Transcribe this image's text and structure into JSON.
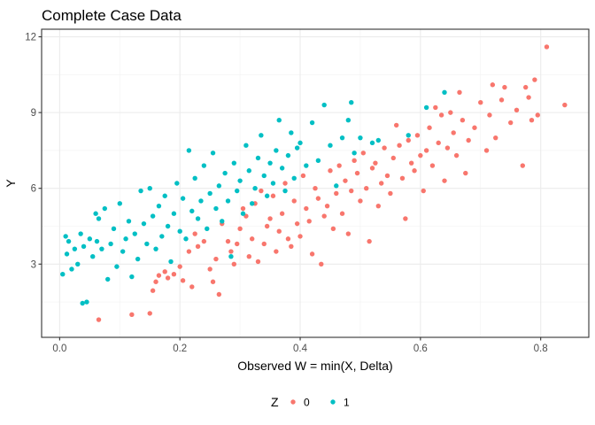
{
  "chart_data": {
    "type": "scatter",
    "title": "Complete Case Data",
    "xlabel": "Observed W = min(X, Delta)",
    "ylabel": "Y",
    "xlim": [
      -0.03,
      0.88
    ],
    "ylim": [
      0.1,
      12.3
    ],
    "x_ticks": [
      0.0,
      0.2,
      0.4,
      0.6,
      0.8
    ],
    "x_tick_labels": [
      "0.0",
      "0.2",
      "0.4",
      "0.6",
      "0.8"
    ],
    "y_ticks": [
      3,
      6,
      9,
      12
    ],
    "y_tick_labels": [
      "3",
      "6",
      "9",
      "12"
    ],
    "grid": true,
    "legend": {
      "title": "Z",
      "placement": "bottom"
    },
    "series": [
      {
        "name": "0",
        "color": "#F8766D",
        "points": [
          [
            0.065,
            0.8
          ],
          [
            0.12,
            1.0
          ],
          [
            0.15,
            1.05
          ],
          [
            0.155,
            1.95
          ],
          [
            0.16,
            2.3
          ],
          [
            0.165,
            2.55
          ],
          [
            0.175,
            2.7
          ],
          [
            0.18,
            2.45
          ],
          [
            0.19,
            2.6
          ],
          [
            0.2,
            2.9
          ],
          [
            0.205,
            2.35
          ],
          [
            0.215,
            3.5
          ],
          [
            0.22,
            2.1
          ],
          [
            0.225,
            4.2
          ],
          [
            0.23,
            3.7
          ],
          [
            0.24,
            3.9
          ],
          [
            0.25,
            2.8
          ],
          [
            0.255,
            2.3
          ],
          [
            0.26,
            3.2
          ],
          [
            0.265,
            1.8
          ],
          [
            0.27,
            4.6
          ],
          [
            0.28,
            3.9
          ],
          [
            0.285,
            3.5
          ],
          [
            0.29,
            3.0
          ],
          [
            0.295,
            3.8
          ],
          [
            0.3,
            4.4
          ],
          [
            0.305,
            5.2
          ],
          [
            0.31,
            4.9
          ],
          [
            0.315,
            3.3
          ],
          [
            0.32,
            4.0
          ],
          [
            0.325,
            5.4
          ],
          [
            0.33,
            3.1
          ],
          [
            0.335,
            5.9
          ],
          [
            0.34,
            3.8
          ],
          [
            0.345,
            4.5
          ],
          [
            0.35,
            4.8
          ],
          [
            0.355,
            5.7
          ],
          [
            0.36,
            3.5
          ],
          [
            0.365,
            4.3
          ],
          [
            0.37,
            5.0
          ],
          [
            0.375,
            6.2
          ],
          [
            0.38,
            4.0
          ],
          [
            0.385,
            3.7
          ],
          [
            0.39,
            5.5
          ],
          [
            0.395,
            4.6
          ],
          [
            0.4,
            4.1
          ],
          [
            0.405,
            6.5
          ],
          [
            0.41,
            5.2
          ],
          [
            0.415,
            4.7
          ],
          [
            0.42,
            3.4
          ],
          [
            0.425,
            6.0
          ],
          [
            0.43,
            5.6
          ],
          [
            0.435,
            3.0
          ],
          [
            0.44,
            4.9
          ],
          [
            0.445,
            5.3
          ],
          [
            0.45,
            6.7
          ],
          [
            0.455,
            4.4
          ],
          [
            0.46,
            5.8
          ],
          [
            0.465,
            6.9
          ],
          [
            0.47,
            5.0
          ],
          [
            0.475,
            6.3
          ],
          [
            0.48,
            4.2
          ],
          [
            0.485,
            5.9
          ],
          [
            0.49,
            7.1
          ],
          [
            0.495,
            6.6
          ],
          [
            0.5,
            5.5
          ],
          [
            0.505,
            7.4
          ],
          [
            0.51,
            6.0
          ],
          [
            0.515,
            3.9
          ],
          [
            0.52,
            6.8
          ],
          [
            0.525,
            7.0
          ],
          [
            0.53,
            5.3
          ],
          [
            0.535,
            6.2
          ],
          [
            0.54,
            7.6
          ],
          [
            0.545,
            6.5
          ],
          [
            0.55,
            5.8
          ],
          [
            0.555,
            7.2
          ],
          [
            0.56,
            8.5
          ],
          [
            0.565,
            7.7
          ],
          [
            0.57,
            6.4
          ],
          [
            0.575,
            4.8
          ],
          [
            0.58,
            7.9
          ],
          [
            0.585,
            7.0
          ],
          [
            0.59,
            6.7
          ],
          [
            0.595,
            8.1
          ],
          [
            0.6,
            7.3
          ],
          [
            0.605,
            5.9
          ],
          [
            0.61,
            7.5
          ],
          [
            0.615,
            8.4
          ],
          [
            0.62,
            6.9
          ],
          [
            0.625,
            9.2
          ],
          [
            0.63,
            7.8
          ],
          [
            0.635,
            8.9
          ],
          [
            0.64,
            6.3
          ],
          [
            0.645,
            7.6
          ],
          [
            0.65,
            9.0
          ],
          [
            0.655,
            8.2
          ],
          [
            0.66,
            7.3
          ],
          [
            0.665,
            9.8
          ],
          [
            0.67,
            8.7
          ],
          [
            0.675,
            6.6
          ],
          [
            0.68,
            7.9
          ],
          [
            0.69,
            8.4
          ],
          [
            0.7,
            9.4
          ],
          [
            0.71,
            7.5
          ],
          [
            0.715,
            8.9
          ],
          [
            0.72,
            10.1
          ],
          [
            0.725,
            8.0
          ],
          [
            0.735,
            9.5
          ],
          [
            0.74,
            10.0
          ],
          [
            0.75,
            8.6
          ],
          [
            0.76,
            9.1
          ],
          [
            0.77,
            6.9
          ],
          [
            0.775,
            10.0
          ],
          [
            0.78,
            9.6
          ],
          [
            0.785,
            8.7
          ],
          [
            0.79,
            10.3
          ],
          [
            0.795,
            8.9
          ],
          [
            0.81,
            11.6
          ],
          [
            0.84,
            9.3
          ]
        ]
      },
      {
        "name": "1",
        "color": "#00BFC4",
        "points": [
          [
            0.005,
            2.6
          ],
          [
            0.01,
            4.1
          ],
          [
            0.012,
            3.4
          ],
          [
            0.015,
            3.9
          ],
          [
            0.02,
            2.8
          ],
          [
            0.025,
            3.6
          ],
          [
            0.03,
            3.0
          ],
          [
            0.035,
            4.2
          ],
          [
            0.038,
            1.45
          ],
          [
            0.04,
            3.7
          ],
          [
            0.045,
            1.5
          ],
          [
            0.05,
            4.0
          ],
          [
            0.055,
            3.3
          ],
          [
            0.06,
            5.0
          ],
          [
            0.062,
            3.9
          ],
          [
            0.065,
            4.8
          ],
          [
            0.07,
            3.6
          ],
          [
            0.075,
            5.2
          ],
          [
            0.08,
            2.4
          ],
          [
            0.085,
            3.8
          ],
          [
            0.09,
            4.4
          ],
          [
            0.095,
            2.9
          ],
          [
            0.1,
            5.4
          ],
          [
            0.105,
            3.5
          ],
          [
            0.11,
            4.0
          ],
          [
            0.115,
            4.7
          ],
          [
            0.12,
            2.5
          ],
          [
            0.125,
            4.2
          ],
          [
            0.13,
            3.2
          ],
          [
            0.135,
            5.9
          ],
          [
            0.14,
            4.6
          ],
          [
            0.145,
            3.8
          ],
          [
            0.15,
            6.0
          ],
          [
            0.155,
            4.9
          ],
          [
            0.16,
            3.6
          ],
          [
            0.165,
            5.3
          ],
          [
            0.17,
            4.1
          ],
          [
            0.175,
            5.7
          ],
          [
            0.18,
            4.5
          ],
          [
            0.185,
            3.1
          ],
          [
            0.19,
            5.0
          ],
          [
            0.195,
            6.2
          ],
          [
            0.2,
            4.3
          ],
          [
            0.205,
            5.6
          ],
          [
            0.21,
            4.0
          ],
          [
            0.215,
            7.5
          ],
          [
            0.22,
            5.1
          ],
          [
            0.225,
            6.4
          ],
          [
            0.23,
            4.8
          ],
          [
            0.235,
            5.5
          ],
          [
            0.24,
            6.9
          ],
          [
            0.245,
            4.4
          ],
          [
            0.25,
            5.8
          ],
          [
            0.255,
            7.4
          ],
          [
            0.26,
            5.2
          ],
          [
            0.265,
            6.1
          ],
          [
            0.27,
            4.7
          ],
          [
            0.275,
            6.6
          ],
          [
            0.28,
            5.5
          ],
          [
            0.285,
            3.3
          ],
          [
            0.29,
            7.0
          ],
          [
            0.295,
            5.9
          ],
          [
            0.3,
            6.3
          ],
          [
            0.305,
            5.0
          ],
          [
            0.31,
            7.7
          ],
          [
            0.315,
            6.7
          ],
          [
            0.32,
            5.4
          ],
          [
            0.325,
            6.0
          ],
          [
            0.33,
            7.2
          ],
          [
            0.335,
            8.1
          ],
          [
            0.34,
            6.5
          ],
          [
            0.345,
            5.7
          ],
          [
            0.35,
            7.0
          ],
          [
            0.355,
            6.2
          ],
          [
            0.36,
            7.5
          ],
          [
            0.365,
            8.7
          ],
          [
            0.37,
            6.8
          ],
          [
            0.375,
            5.9
          ],
          [
            0.38,
            7.3
          ],
          [
            0.385,
            8.2
          ],
          [
            0.39,
            6.4
          ],
          [
            0.395,
            7.6
          ],
          [
            0.4,
            7.8
          ],
          [
            0.41,
            6.9
          ],
          [
            0.42,
            8.6
          ],
          [
            0.43,
            7.1
          ],
          [
            0.44,
            9.3
          ],
          [
            0.45,
            7.7
          ],
          [
            0.46,
            6.1
          ],
          [
            0.47,
            8.0
          ],
          [
            0.48,
            8.7
          ],
          [
            0.485,
            9.4
          ],
          [
            0.49,
            7.4
          ],
          [
            0.5,
            8.0
          ],
          [
            0.52,
            7.8
          ],
          [
            0.53,
            7.9
          ],
          [
            0.58,
            8.1
          ],
          [
            0.61,
            9.2
          ],
          [
            0.64,
            9.8
          ]
        ]
      }
    ]
  }
}
